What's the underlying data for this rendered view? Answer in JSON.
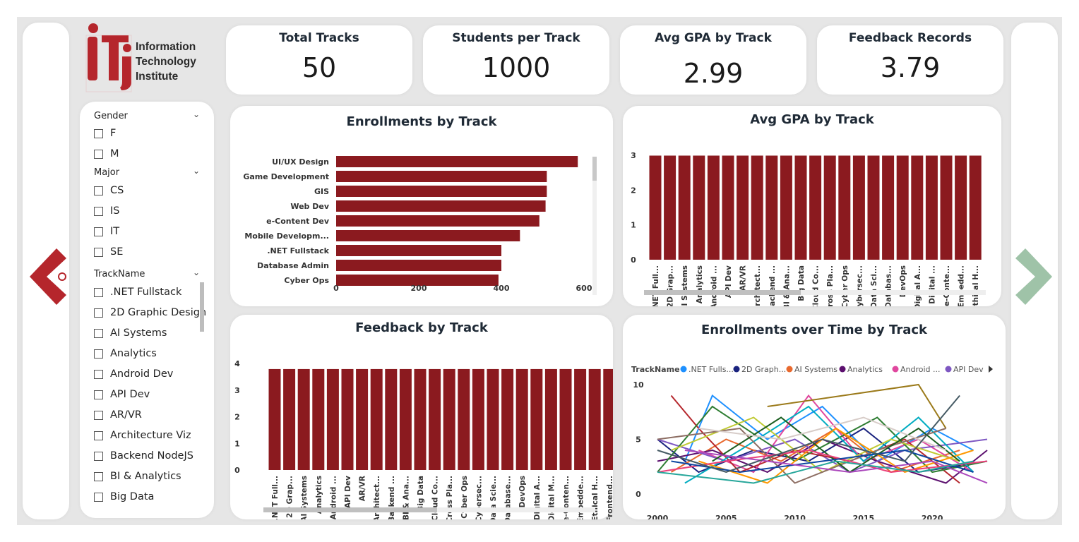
{
  "brand": {
    "lines": [
      "Information",
      "Technology",
      "Institute"
    ],
    "logo_letters": "iTi",
    "accent": "#8b1a1f"
  },
  "kpis": [
    {
      "title": "Total Tracks",
      "value": "50"
    },
    {
      "title": "Students per Track",
      "value": "1000"
    },
    {
      "title": "Avg GPA by Track",
      "value": "2.99"
    },
    {
      "title": "Feedback Records",
      "value": "3.79"
    }
  ],
  "slicers": {
    "gender": {
      "label": "Gender",
      "options": [
        "F",
        "M"
      ]
    },
    "major": {
      "label": "Major",
      "options": [
        "CS",
        "IS",
        "IT",
        "SE"
      ]
    },
    "track": {
      "label": "TrackName",
      "options": [
        ".NET Fullstack",
        "2D Graphic Design",
        "AI Systems",
        "Analytics",
        "Android Dev",
        "API Dev",
        "AR/VR",
        "Architecture Viz",
        "Backend NodeJS",
        "BI & Analytics",
        "Big Data"
      ]
    }
  },
  "nav": {
    "prev_icon": "arrow-left-icon",
    "next_icon": "arrow-right-icon",
    "prev_color": "#b5262c",
    "next_color": "#9fc3a8"
  },
  "charts": {
    "enrollments_by_track": {
      "title": "Enrollments by Track"
    },
    "avg_gpa_by_track": {
      "title": "Avg GPA by Track"
    },
    "feedback_by_track": {
      "title": "Feedback by Track"
    },
    "enrollments_over_time": {
      "title": "Enrollments over Time by Track",
      "legend_label": "TrackName"
    }
  },
  "chart_data": [
    {
      "type": "bar",
      "orientation": "horizontal",
      "title": "Enrollments by Track",
      "categories": [
        "UI/UX Design",
        "Game Development",
        "GIS",
        "Web Dev",
        "e-Content Dev",
        "Mobile Developm...",
        ".NET Fullstack",
        "Database Admin",
        "Cyber Ops"
      ],
      "values": [
        585,
        510,
        510,
        507,
        492,
        445,
        400,
        400,
        393
      ],
      "xlim": [
        0,
        620
      ],
      "xticks": [
        0,
        200,
        400,
        600
      ],
      "color": "#8b1a1f"
    },
    {
      "type": "bar",
      "title": "Avg GPA by Track",
      "categories": [
        ".NET Full...",
        "2D Grap...",
        "AI Systems",
        "Analytics",
        "Android ...",
        "API Dev",
        "AR/VR",
        "Architect...",
        "Backend ...",
        "BI & Ana...",
        "Big Data",
        "Cloud Co...",
        "Cross Pla...",
        "Cyber Ops",
        "Cybersec...",
        "Data Sci...",
        "Databas...",
        "DevOps",
        "Digital A...",
        "Digital ...",
        "e-Conte...",
        "Embedd...",
        "Ethical H..."
      ],
      "values": [
        2.99,
        2.99,
        2.99,
        2.99,
        2.99,
        2.99,
        2.99,
        2.99,
        2.99,
        2.99,
        2.99,
        2.99,
        2.99,
        2.99,
        2.99,
        2.99,
        2.99,
        2.99,
        2.99,
        2.99,
        2.99,
        2.99,
        2.99
      ],
      "ylim": [
        0,
        3
      ],
      "yticks": [
        0,
        1,
        2,
        3
      ],
      "color": "#8b1a1f"
    },
    {
      "type": "bar",
      "title": "Feedback by Track",
      "categories": [
        ".NET Full...",
        "2D Grap...",
        "AI Systems",
        "Analytics",
        "Android ...",
        "API Dev",
        "AR/VR",
        "Architect...",
        "Backend ...",
        "BI & Ana...",
        "Big Data",
        "Cloud Co...",
        "Cross Pla...",
        "Cyber Ops",
        "Cybersec...",
        "Data Scie...",
        "Database...",
        "DevOps",
        "Digital A...",
        "Digital M...",
        "e-Conten...",
        "Embedde...",
        "Ethical H...",
        "Frontend..."
      ],
      "values": [
        3.79,
        3.79,
        3.79,
        3.79,
        3.79,
        3.79,
        3.79,
        3.79,
        3.79,
        3.79,
        3.79,
        3.79,
        3.79,
        3.79,
        3.79,
        3.79,
        3.79,
        3.79,
        3.79,
        3.79,
        3.79,
        3.79,
        3.79,
        3.79
      ],
      "ylim": [
        0,
        4
      ],
      "yticks": [
        0,
        1,
        2,
        3,
        4
      ],
      "color": "#8b1a1f"
    },
    {
      "type": "line",
      "title": "Enrollments over Time by Track",
      "xlim": [
        2000,
        2024
      ],
      "ylim": [
        0,
        10
      ],
      "xticks": [
        2000,
        2005,
        2010,
        2015,
        2020
      ],
      "yticks": [
        0,
        5,
        10
      ],
      "legend": [
        "TrackName",
        ".NET Fulls...",
        "2D Graph...",
        "AI Systems",
        "Analytics",
        "Android ...",
        "API Dev"
      ],
      "legend_colors": [
        "#1e90ff",
        "#1a237e",
        "#e8692e",
        "#5b0f6e",
        "#e0479e",
        "#7e57c2"
      ],
      "series": [
        {
          "color": "#1e90ff",
          "x": [
            2002,
            2004,
            2008,
            2012,
            2016,
            2020,
            2023
          ],
          "y": [
            3,
            9,
            5,
            8,
            3,
            6,
            4
          ]
        },
        {
          "color": "#1a237e",
          "x": [
            2000,
            2003,
            2007,
            2011,
            2015,
            2019,
            2024
          ],
          "y": [
            5,
            2,
            4,
            3,
            6,
            2,
            3
          ]
        },
        {
          "color": "#e8692e",
          "x": [
            2001,
            2005,
            2009,
            2013,
            2017,
            2022
          ],
          "y": [
            2,
            5,
            3,
            6,
            2,
            4
          ]
        },
        {
          "color": "#5b0f6e",
          "x": [
            2000,
            2004,
            2008,
            2012,
            2016,
            2021,
            2024
          ],
          "y": [
            3,
            4,
            2,
            5,
            3,
            1,
            4
          ]
        },
        {
          "color": "#e0479e",
          "x": [
            2003,
            2007,
            2011,
            2015,
            2019,
            2023
          ],
          "y": [
            4,
            2,
            9,
            3,
            5,
            2
          ]
        },
        {
          "color": "#7e57c2",
          "x": [
            2000,
            2005,
            2010,
            2014,
            2018,
            2024
          ],
          "y": [
            5,
            3,
            5,
            2,
            4,
            5
          ]
        },
        {
          "color": "#9b7a1a",
          "x": [
            2008,
            2019,
            2021
          ],
          "y": [
            8,
            10,
            6
          ]
        },
        {
          "color": "#b5262c",
          "x": [
            2001,
            2003,
            2006,
            2010,
            2014,
            2018,
            2022
          ],
          "y": [
            9,
            6,
            2,
            4,
            3,
            5,
            1
          ]
        },
        {
          "color": "#2e7d32",
          "x": [
            2000,
            2004,
            2010,
            2016,
            2020,
            2024
          ],
          "y": [
            2,
            8,
            3,
            7,
            2,
            3
          ]
        },
        {
          "color": "#00acc1",
          "x": [
            2002,
            2006,
            2011,
            2015,
            2019,
            2023
          ],
          "y": [
            1,
            4,
            8,
            3,
            7,
            2
          ]
        },
        {
          "color": "#c0ca33",
          "x": [
            2001,
            2007,
            2012,
            2017,
            2022
          ],
          "y": [
            4,
            7,
            2,
            5,
            3
          ]
        },
        {
          "color": "#8d6e63",
          "x": [
            2000,
            2006,
            2010,
            2016,
            2021
          ],
          "y": [
            5,
            6,
            1,
            4,
            6
          ]
        },
        {
          "color": "#ff9800",
          "x": [
            2003,
            2008,
            2013,
            2018,
            2023
          ],
          "y": [
            3,
            1,
            6,
            2,
            4
          ]
        },
        {
          "color": "#1b5e20",
          "x": [
            2004,
            2009,
            2014,
            2019,
            2022
          ],
          "y": [
            3,
            7,
            2,
            6,
            3
          ]
        },
        {
          "color": "#ec407a",
          "x": [
            2000,
            2005,
            2011,
            2017,
            2024
          ],
          "y": [
            2,
            3,
            4,
            2,
            3
          ]
        },
        {
          "color": "#0d47a1",
          "x": [
            2001,
            2006,
            2012,
            2018,
            2023
          ],
          "y": [
            3,
            2,
            3,
            4,
            2
          ]
        },
        {
          "color": "#ab47bc",
          "x": [
            2002,
            2008,
            2014,
            2020,
            2024
          ],
          "y": [
            4,
            3,
            2,
            3,
            1
          ]
        },
        {
          "color": "#26a69a",
          "x": [
            2000,
            2007,
            2013,
            2019,
            2023
          ],
          "y": [
            2,
            1,
            3,
            2,
            3
          ]
        },
        {
          "color": "#d7ccc8",
          "x": [
            2003,
            2009,
            2015,
            2021
          ],
          "y": [
            6,
            5,
            7,
            4
          ]
        },
        {
          "color": "#455a64",
          "x": [
            2000,
            2005,
            2012,
            2018,
            2022
          ],
          "y": [
            4,
            2,
            5,
            3,
            9
          ]
        }
      ]
    }
  ]
}
